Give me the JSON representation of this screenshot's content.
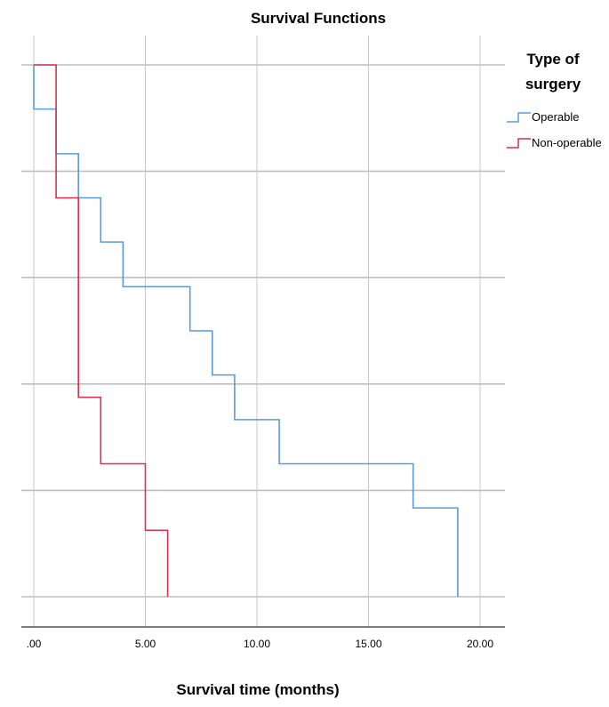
{
  "chart_data": {
    "type": "line",
    "title": "Survival Functions",
    "xlabel": "Survival time (months)",
    "ylabel": "",
    "xlim": [
      0,
      21
    ],
    "ylim": [
      0,
      1.0
    ],
    "x_ticks": [
      0,
      5,
      10,
      15,
      20
    ],
    "x_tick_labels": [
      ".00",
      "5.00",
      "10.00",
      "15.00",
      "20.00"
    ],
    "y_grid": [
      0,
      0.2,
      0.4,
      0.6,
      0.8,
      1.0
    ],
    "x_grid": [
      0,
      5,
      10,
      15,
      20
    ],
    "grid": true,
    "legend": {
      "title_line1": "Type of",
      "title_line2": "surgery",
      "placement": "right"
    },
    "series": [
      {
        "name": "Operable",
        "color": "#5b9bd5",
        "step_x": [
          0,
          1,
          2,
          3,
          4,
          7,
          8,
          9,
          11,
          17,
          19
        ],
        "step_y": [
          1.0,
          0.917,
          0.833,
          0.75,
          0.667,
          0.583,
          0.5,
          0.417,
          0.333,
          0.25,
          0.167,
          0.0
        ]
      },
      {
        "name": "Non-operable",
        "color": "#d9304f",
        "step_x": [
          1,
          2,
          3,
          5,
          6
        ],
        "step_y": [
          1.0,
          0.75,
          0.375,
          0.25,
          0.125,
          0.0
        ]
      }
    ]
  }
}
